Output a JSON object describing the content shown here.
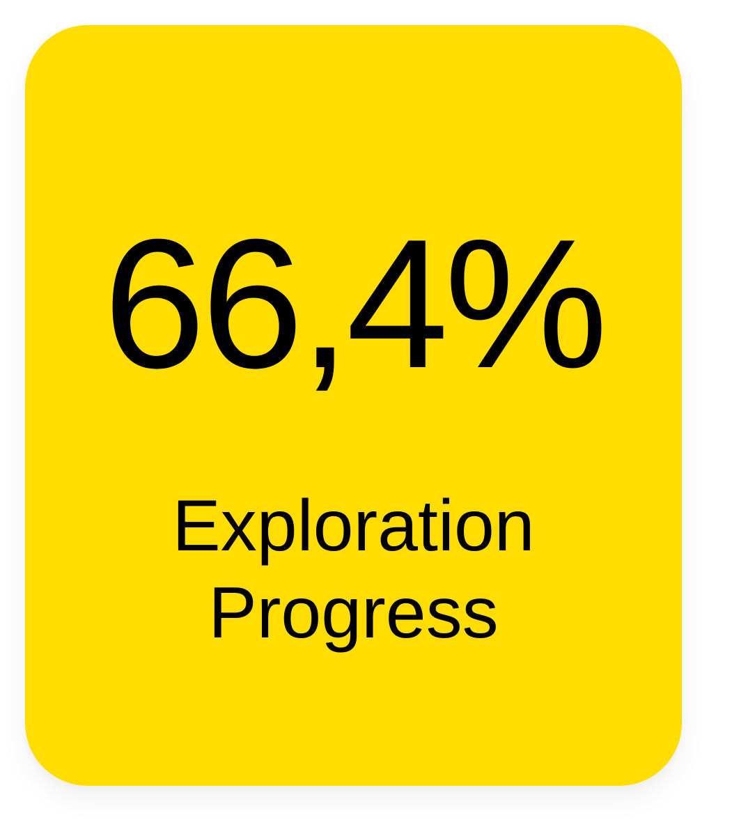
{
  "card": {
    "value": "66,4%",
    "label_line1": "Exploration",
    "label_line2": "Progress"
  },
  "colors": {
    "card_background": "#FFDD00",
    "text": "#000000",
    "page_background": "#FFFFFF"
  }
}
